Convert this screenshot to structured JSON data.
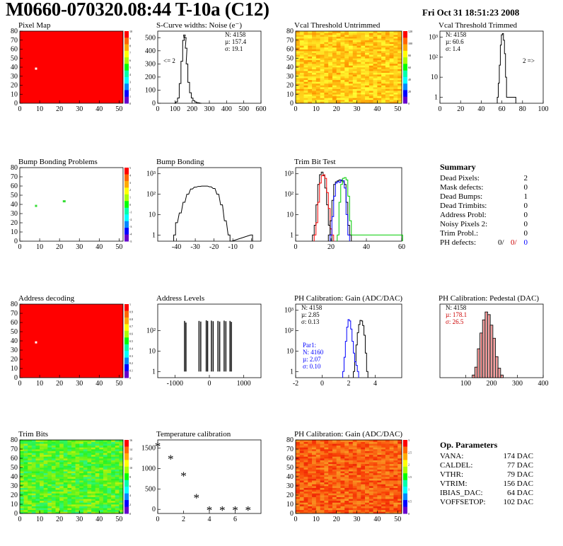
{
  "header": {
    "title": "M0660-070320.08:44 T-10a (C12)",
    "datestamp": "Fri Oct 31 18:51:23 2008"
  },
  "colors": {
    "red": "#ff0000",
    "black": "#000000",
    "blue": "#0000ff",
    "green": "#00cc00",
    "dark_red": "#cc0000"
  },
  "chart_data": [
    {
      "id": "pixel-map",
      "type": "heatmap",
      "title": "Pixel Map",
      "xlim": [
        0,
        52
      ],
      "ylim": [
        0,
        80
      ],
      "xticks": [
        0,
        10,
        20,
        30,
        40,
        50
      ],
      "yticks": [
        0,
        10,
        20,
        30,
        40,
        50,
        60,
        70,
        80
      ],
      "palette_max": 10,
      "palette_ticks": [
        "0",
        "1",
        "2",
        "3",
        "4",
        "5",
        "6",
        "7",
        "8",
        "9",
        "10"
      ],
      "fill": "uniform-max",
      "marks": [
        {
          "x": 8,
          "y": 38,
          "level": "dead"
        }
      ]
    },
    {
      "id": "scurve-noise",
      "type": "line",
      "title": "S-Curve widths: Noise (e⁻)",
      "xlim": [
        0,
        600
      ],
      "ylim": [
        0,
        550
      ],
      "xticks": [
        0,
        100,
        200,
        300,
        400,
        500,
        600
      ],
      "yticks": [
        0,
        100,
        200,
        300,
        400,
        500
      ],
      "stats": [
        "N: 4158",
        "µ: 157.4",
        "σ: 19.1"
      ],
      "annotation": "<= 2",
      "x": [
        100,
        110,
        120,
        130,
        140,
        150,
        155,
        160,
        165,
        170,
        180,
        190,
        200,
        210,
        220,
        230,
        240,
        250
      ],
      "y": [
        0,
        10,
        40,
        150,
        320,
        480,
        520,
        500,
        420,
        300,
        160,
        80,
        40,
        20,
        10,
        5,
        3,
        0
      ]
    },
    {
      "id": "vcal-untrimmed",
      "type": "heatmap",
      "title": "Vcal Threshold Untrimmed",
      "xlim": [
        0,
        52
      ],
      "ylim": [
        0,
        80
      ],
      "xticks": [
        0,
        10,
        20,
        30,
        40,
        50
      ],
      "yticks": [
        0,
        10,
        20,
        30,
        40,
        50,
        60,
        70,
        80
      ],
      "palette_max": 130,
      "palette_ticks": [
        "0",
        "20",
        "40",
        "60",
        "80",
        "100",
        "120"
      ],
      "fill": "orange-yellow-gradient"
    },
    {
      "id": "vcal-trimmed",
      "type": "line",
      "title": "Vcal Threshold Trimmed",
      "xlim": [
        0,
        100
      ],
      "ylog": true,
      "ylim": [
        0.5,
        2000
      ],
      "xticks": [
        0,
        20,
        40,
        60,
        80,
        100
      ],
      "yticks_log": [
        "1",
        "10",
        "10²",
        "10³"
      ],
      "stats": [
        "N: 4158",
        "µ: 60.6",
        "σ: 1.4"
      ],
      "annotation": "2 =>",
      "x": [
        56,
        57,
        58,
        59,
        60,
        61,
        62,
        63,
        64,
        65,
        72,
        73
      ],
      "y": [
        1,
        5,
        40,
        400,
        1300,
        1500,
        700,
        150,
        10,
        1,
        1,
        1
      ]
    },
    {
      "id": "bump-bonding-problems",
      "type": "heatmap",
      "title": "Bump Bonding Problems",
      "xlim": [
        0,
        52
      ],
      "ylim": [
        0,
        80
      ],
      "xticks": [
        0,
        10,
        20,
        30,
        40,
        50
      ],
      "yticks": [
        0,
        10,
        20,
        30,
        40,
        50,
        60,
        70,
        80
      ],
      "palette_max": 5,
      "palette_ticks": [
        "-5",
        "-4",
        "-3",
        "-2",
        "-1",
        "0",
        "1",
        "2",
        "3",
        "4",
        "5"
      ],
      "fill": "white",
      "marks": [
        {
          "x": 8,
          "y": 38,
          "level": "green"
        },
        {
          "x": 22,
          "y": 43,
          "level": "green-small"
        }
      ]
    },
    {
      "id": "bump-bonding",
      "type": "line",
      "title": "Bump Bonding",
      "xlim": [
        -50,
        5
      ],
      "ylog": true,
      "ylim": [
        0.5,
        2000
      ],
      "xticks": [
        -40,
        -30,
        -20,
        -10,
        0
      ],
      "yticks_log": [
        "1",
        "10",
        "10²",
        "10³"
      ],
      "x": [
        -41,
        -40,
        -38,
        -36,
        -34,
        -32,
        -30,
        -28,
        -26,
        -24,
        -22,
        -20,
        -18,
        -16,
        -14,
        -12,
        -11,
        0
      ],
      "y": [
        1,
        4,
        12,
        40,
        100,
        180,
        220,
        240,
        250,
        250,
        230,
        190,
        100,
        30,
        5,
        1,
        0.5,
        1
      ]
    },
    {
      "id": "trim-bit-test",
      "type": "line",
      "title": "Trim Bit Test",
      "xlim": [
        0,
        60
      ],
      "ylog": true,
      "ylim": [
        0.5,
        2000
      ],
      "xticks": [
        0,
        20,
        40,
        60
      ],
      "yticks_log": [
        "1",
        "10",
        "10²",
        "10³"
      ],
      "series": [
        {
          "color": "black",
          "x": [
            10,
            11,
            12,
            13,
            14,
            15,
            16,
            17,
            18,
            19,
            20
          ],
          "y": [
            1,
            3,
            30,
            300,
            900,
            1200,
            800,
            200,
            30,
            3,
            1
          ]
        },
        {
          "color": "red",
          "x": [
            11,
            12,
            13,
            14,
            15,
            16,
            17,
            18,
            19,
            20,
            21
          ],
          "y": [
            1,
            4,
            40,
            350,
            800,
            900,
            600,
            120,
            20,
            2,
            1
          ]
        },
        {
          "color": "black",
          "x": [
            19,
            20,
            21,
            22,
            23,
            24,
            25,
            26,
            27,
            28,
            29,
            30,
            31
          ],
          "y": [
            1,
            5,
            50,
            300,
            400,
            450,
            500,
            450,
            400,
            300,
            40,
            3,
            1
          ]
        },
        {
          "color": "blue",
          "x": [
            20,
            21,
            22,
            23,
            24,
            25,
            26,
            27,
            28,
            29,
            30
          ],
          "y": [
            1,
            8,
            80,
            350,
            420,
            380,
            500,
            460,
            200,
            10,
            1
          ]
        },
        {
          "color": "green",
          "x": [
            24,
            25,
            26,
            27,
            28,
            29,
            30,
            31,
            32,
            60
          ],
          "y": [
            1,
            40,
            300,
            600,
            650,
            500,
            80,
            5,
            1,
            1
          ]
        }
      ]
    },
    {
      "id": "address-decoding",
      "type": "heatmap",
      "title": "Address decoding",
      "xlim": [
        0,
        52
      ],
      "ylim": [
        0,
        80
      ],
      "xticks": [
        0,
        10,
        20,
        30,
        40,
        50
      ],
      "yticks": [
        0,
        10,
        20,
        30,
        40,
        50,
        60,
        70,
        80
      ],
      "palette_max": 1,
      "palette_ticks": [
        "0",
        "0.1",
        "0.2",
        "0.3",
        "0.4",
        "0.5",
        "0.6",
        "0.7",
        "0.8",
        "0.9",
        "1"
      ],
      "fill": "uniform-max",
      "marks": [
        {
          "x": 8,
          "y": 38,
          "level": "dead"
        }
      ]
    },
    {
      "id": "address-levels",
      "type": "bar",
      "title": "Address Levels",
      "xlim": [
        -1500,
        1500
      ],
      "ylog": true,
      "ylim": [
        0.5,
        2000
      ],
      "xticks": [
        -1000,
        0,
        1000
      ],
      "yticks_log": [
        "1",
        "10",
        "10²"
      ],
      "spikes": [
        -720,
        -680,
        -300,
        -250,
        -90,
        -50,
        60,
        110,
        250,
        300,
        430,
        480,
        600,
        640
      ],
      "heights": [
        300,
        250,
        300,
        280,
        320,
        300,
        310,
        290,
        300,
        280,
        310,
        290,
        300,
        270
      ]
    },
    {
      "id": "ph-gain",
      "type": "line",
      "title": "PH Calibration: Gain (ADC/DAC)",
      "xlim": [
        -2,
        6
      ],
      "ylog": true,
      "ylim": [
        0.5,
        2000
      ],
      "xticks": [
        -2,
        0,
        2,
        4
      ],
      "yticks_log": [
        "1",
        "10",
        "10²",
        "10³"
      ],
      "stats": [
        "N: 4158",
        "µ: 2.85",
        "σ: 0.13"
      ],
      "stats2": [
        "Par1:",
        "N: 4160",
        "µ: 2.07",
        "σ: 0.10"
      ],
      "series": [
        {
          "color": "black",
          "x": [
            2.4,
            2.5,
            2.6,
            2.7,
            2.8,
            2.9,
            3.0,
            3.1,
            3.2,
            3.3,
            3.4
          ],
          "y": [
            1,
            3,
            20,
            80,
            200,
            320,
            300,
            180,
            60,
            8,
            1
          ]
        },
        {
          "color": "blue",
          "x": [
            1.6,
            1.7,
            1.8,
            1.9,
            2.0,
            2.1,
            2.2,
            2.3,
            2.4,
            2.5,
            2.6,
            2.7
          ],
          "y": [
            1,
            5,
            30,
            150,
            350,
            300,
            120,
            30,
            8,
            3,
            2,
            1
          ]
        }
      ]
    },
    {
      "id": "ph-pedestal",
      "type": "bar",
      "title": "PH Calibration: Pedestal (DAC)",
      "xlim": [
        0,
        400
      ],
      "ylim": [
        0,
        140
      ],
      "xticks": [
        100,
        200,
        300,
        400
      ],
      "stats": [
        "N: 4158",
        "µ: 178.1",
        "σ: 26.5"
      ],
      "x": [
        130,
        140,
        150,
        160,
        170,
        180,
        190,
        200,
        210,
        220,
        230,
        240
      ],
      "values": [
        5,
        20,
        55,
        85,
        110,
        125,
        120,
        100,
        75,
        40,
        18,
        5
      ]
    },
    {
      "id": "trim-bits",
      "type": "heatmap",
      "title": "Trim Bits",
      "xlim": [
        0,
        52
      ],
      "ylim": [
        0,
        80
      ],
      "xticks": [
        0,
        10,
        20,
        30,
        40,
        50
      ],
      "yticks": [
        0,
        10,
        20,
        30,
        40,
        50,
        60,
        70,
        80
      ],
      "palette_max": 16,
      "palette_ticks": [
        "0",
        "2",
        "4",
        "6",
        "8",
        "10",
        "12",
        "14",
        "16"
      ],
      "fill": "green-gradient"
    },
    {
      "id": "temperature-calibration",
      "type": "scatter",
      "title": "Temperature calibration",
      "xlim": [
        0,
        8
      ],
      "ylim": [
        -100,
        1700
      ],
      "xticks": [
        0,
        2,
        4,
        6
      ],
      "yticks": [
        0,
        500,
        1000,
        1500
      ],
      "x": [
        0,
        1,
        2,
        3,
        4,
        5,
        6,
        7
      ],
      "y": [
        1550,
        1240,
        830,
        290,
        -10,
        -10,
        -10,
        -10
      ]
    },
    {
      "id": "ph-gain-map",
      "type": "heatmap",
      "title": "PH Calibration: Gain (ADC/DAC)",
      "xlim": [
        0,
        52
      ],
      "ylim": [
        0,
        80
      ],
      "xticks": [
        0,
        10,
        20,
        30,
        40,
        50
      ],
      "yticks": [
        0,
        10,
        20,
        30,
        40,
        50,
        60,
        70,
        80
      ],
      "palette_max": 3,
      "palette_ticks": [
        "0",
        "0.5",
        "1",
        "1.5",
        "2",
        "2.5",
        "3"
      ],
      "fill": "red-orange-gradient"
    }
  ],
  "summary": {
    "heading": "Summary",
    "rows": [
      {
        "label": "Dead Pixels:",
        "value": "2"
      },
      {
        "label": "Mask defects:",
        "value": "0"
      },
      {
        "label": "Dead Bumps:",
        "value": "1"
      },
      {
        "label": "Dead Trimbits:",
        "value": "0"
      },
      {
        "label": "Address Probl:",
        "value": "0"
      },
      {
        "label": "Noisy Pixels 2:",
        "value": "0"
      },
      {
        "label": "Trim Probl.:",
        "value": "0"
      }
    ],
    "ph_defects": {
      "label": "PH defects:",
      "v1": "0/",
      "v2": "0/",
      "v3": "0"
    }
  },
  "op_parameters": {
    "heading": "Op. Parameters",
    "rows": [
      {
        "label": "VANA:",
        "value": "174 DAC"
      },
      {
        "label": "CALDEL:",
        "value": "77 DAC"
      },
      {
        "label": "VTHR:",
        "value": "79 DAC"
      },
      {
        "label": "VTRIM:",
        "value": "156 DAC"
      },
      {
        "label": "IBIAS_DAC:",
        "value": "64 DAC"
      },
      {
        "label": "VOFFSETOP:",
        "value": "102 DAC"
      }
    ]
  }
}
